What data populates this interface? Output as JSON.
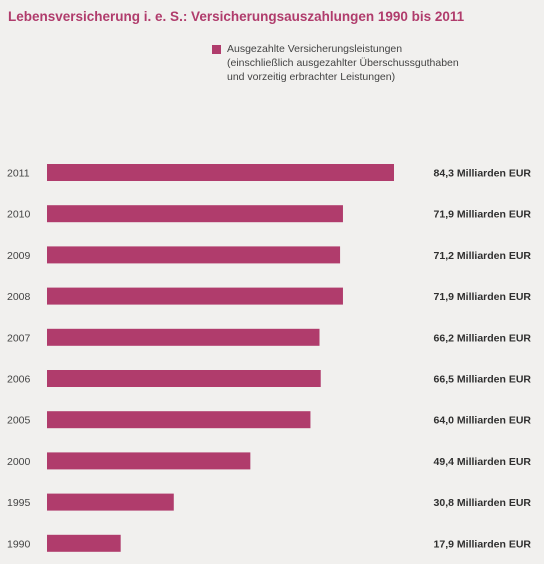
{
  "title": "Lebensversicherung i. e. S.: Versicherungsauszahlungen 1990 bis 2011",
  "legend": {
    "color": "#b03c6c",
    "lines": [
      "Ausgezahlte Versicherungsleistungen",
      "(einschließlich ausgezahlter Überschussguthaben",
      "und vorzeitig erbrachter Leistungen)"
    ]
  },
  "chart_data": {
    "type": "bar",
    "orientation": "horizontal",
    "title": "Lebensversicherung i. e. S.: Versicherungsauszahlungen 1990 bis 2011",
    "categories": [
      "2011",
      "2010",
      "2009",
      "2008",
      "2007",
      "2006",
      "2005",
      "2000",
      "1995",
      "1990"
    ],
    "series": [
      {
        "name": "Ausgezahlte Versicherungsleistungen",
        "values": [
          84.3,
          71.9,
          71.2,
          71.9,
          66.2,
          66.5,
          64.0,
          49.4,
          30.8,
          17.9
        ]
      }
    ],
    "value_labels": [
      "84,3 Milliarden EUR",
      "71,9 Milliarden EUR",
      "71,2 Milliarden EUR",
      "71,9 Milliarden EUR",
      "66,2 Milliarden EUR",
      "66,5 Milliarden EUR",
      "64,0 Milliarden EUR",
      "49,4 Milliarden EUR",
      "30,8 Milliarden EUR",
      "17,9 Milliarden EUR"
    ],
    "unit": "Milliarden EUR",
    "xlim": [
      0,
      84.3
    ],
    "grid": false,
    "legend_position": "top-right",
    "bar_color": "#b03c6c"
  }
}
